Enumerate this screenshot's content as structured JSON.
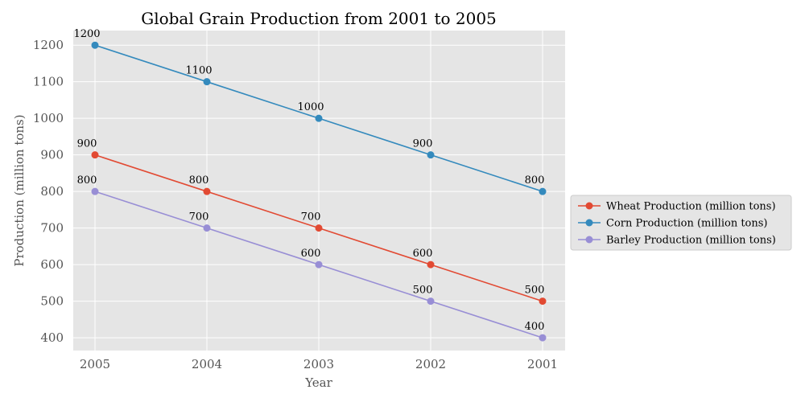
{
  "chart_data": {
    "type": "line",
    "title": "Global Grain Production from 2001 to 2005",
    "xlabel": "Year",
    "ylabel": "Production (million tons)",
    "categories": [
      "2005",
      "2004",
      "2003",
      "2002",
      "2001"
    ],
    "yticks": [
      400,
      500,
      600,
      700,
      800,
      900,
      1000,
      1100,
      1200
    ],
    "ylim": [
      365,
      1240
    ],
    "grid": true,
    "legend_position": "right",
    "series": [
      {
        "name": "Wheat Production (million tons)",
        "color": "#E24A33",
        "values": [
          900,
          800,
          700,
          600,
          500
        ]
      },
      {
        "name": "Corn Production (million tons)",
        "color": "#348ABD",
        "values": [
          1200,
          1100,
          1000,
          900,
          800
        ]
      },
      {
        "name": "Barley Production (million tons)",
        "color": "#988ED5",
        "values": [
          800,
          700,
          600,
          500,
          400
        ]
      }
    ]
  }
}
